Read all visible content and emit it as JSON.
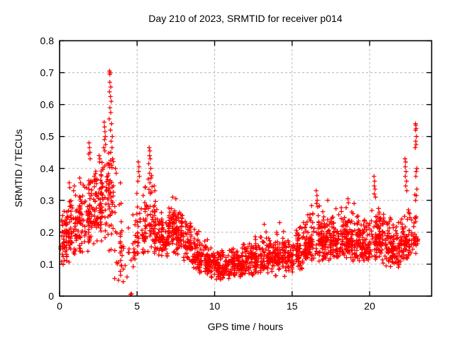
{
  "window": {
    "background": "#ffffff"
  },
  "chart_data": {
    "type": "scatter",
    "title": "Day 210 of 2023, SRMTID for receiver p014",
    "xlabel": "GPS time / hours",
    "ylabel": "SRMTID / TECUs",
    "xlim": [
      0,
      24
    ],
    "ylim": [
      0,
      0.8
    ],
    "x_ticks": [
      0,
      5,
      10,
      15,
      20
    ],
    "x_tick_labels": [
      "0",
      "5",
      "10",
      "15",
      "20"
    ],
    "y_ticks": [
      0,
      0.1,
      0.2,
      0.3,
      0.4,
      0.5,
      0.6,
      0.7,
      0.8
    ],
    "y_tick_labels": [
      "0",
      "0.1",
      "0.2",
      "0.3",
      "0.4",
      "0.5",
      "0.6",
      "0.7",
      "0.8"
    ],
    "grid": true,
    "legend": "none",
    "marker": "plus",
    "marker_color": "#ff0000",
    "grid_color": "#b5b5b5",
    "frame_color": "#000000",
    "seed": 20230729,
    "series_name": "SRMTID",
    "density_bins_format": [
      "x_start_hours",
      "x_end_hours",
      "n_points",
      "y_min",
      "y_max",
      "y_mode"
    ],
    "density_bins": [
      [
        0.0,
        0.5,
        50,
        0.09,
        0.28,
        0.18
      ],
      [
        0.5,
        1.0,
        50,
        0.1,
        0.33,
        0.2
      ],
      [
        1.0,
        1.5,
        52,
        0.12,
        0.36,
        0.22
      ],
      [
        1.5,
        2.0,
        52,
        0.13,
        0.42,
        0.24
      ],
      [
        2.0,
        2.5,
        52,
        0.15,
        0.42,
        0.26
      ],
      [
        2.5,
        3.0,
        55,
        0.16,
        0.47,
        0.29
      ],
      [
        3.0,
        3.5,
        48,
        0.1,
        0.52,
        0.3
      ],
      [
        3.5,
        4.0,
        26,
        0.05,
        0.36,
        0.17
      ],
      [
        4.0,
        4.5,
        12,
        0.04,
        0.22,
        0.12
      ],
      [
        4.5,
        5.0,
        16,
        0.08,
        0.27,
        0.15
      ],
      [
        5.0,
        5.5,
        38,
        0.12,
        0.35,
        0.2
      ],
      [
        5.5,
        6.0,
        50,
        0.12,
        0.42,
        0.24
      ],
      [
        6.0,
        6.5,
        52,
        0.12,
        0.32,
        0.19
      ],
      [
        6.5,
        7.0,
        55,
        0.12,
        0.28,
        0.18
      ],
      [
        7.0,
        7.5,
        58,
        0.13,
        0.3,
        0.2
      ],
      [
        7.5,
        8.0,
        58,
        0.12,
        0.3,
        0.2
      ],
      [
        8.0,
        8.5,
        55,
        0.1,
        0.27,
        0.16
      ],
      [
        8.5,
        9.0,
        52,
        0.08,
        0.22,
        0.13
      ],
      [
        9.0,
        9.5,
        52,
        0.06,
        0.18,
        0.11
      ],
      [
        9.5,
        10.0,
        52,
        0.05,
        0.16,
        0.1
      ],
      [
        10.0,
        10.5,
        52,
        0.05,
        0.15,
        0.09
      ],
      [
        10.5,
        11.0,
        52,
        0.04,
        0.15,
        0.09
      ],
      [
        11.0,
        11.5,
        52,
        0.05,
        0.16,
        0.1
      ],
      [
        11.5,
        12.0,
        52,
        0.05,
        0.17,
        0.1
      ],
      [
        12.0,
        12.5,
        52,
        0.06,
        0.18,
        0.11
      ],
      [
        12.5,
        13.0,
        52,
        0.06,
        0.2,
        0.11
      ],
      [
        13.0,
        13.5,
        52,
        0.07,
        0.22,
        0.12
      ],
      [
        13.5,
        14.0,
        52,
        0.06,
        0.2,
        0.12
      ],
      [
        14.0,
        14.5,
        52,
        0.07,
        0.22,
        0.12
      ],
      [
        14.5,
        15.0,
        52,
        0.06,
        0.2,
        0.11
      ],
      [
        15.0,
        15.5,
        52,
        0.07,
        0.24,
        0.13
      ],
      [
        15.5,
        16.0,
        52,
        0.08,
        0.24,
        0.14
      ],
      [
        16.0,
        16.5,
        54,
        0.1,
        0.3,
        0.17
      ],
      [
        16.5,
        17.0,
        54,
        0.1,
        0.3,
        0.18
      ],
      [
        17.0,
        17.5,
        54,
        0.1,
        0.28,
        0.17
      ],
      [
        17.5,
        18.0,
        54,
        0.1,
        0.3,
        0.18
      ],
      [
        18.0,
        18.5,
        54,
        0.1,
        0.28,
        0.17
      ],
      [
        18.5,
        19.0,
        54,
        0.1,
        0.3,
        0.18
      ],
      [
        19.0,
        19.5,
        54,
        0.1,
        0.28,
        0.17
      ],
      [
        19.5,
        20.0,
        54,
        0.1,
        0.26,
        0.16
      ],
      [
        20.0,
        20.5,
        54,
        0.1,
        0.3,
        0.17
      ],
      [
        20.5,
        21.0,
        54,
        0.1,
        0.28,
        0.17
      ],
      [
        21.0,
        21.5,
        56,
        0.08,
        0.25,
        0.15
      ],
      [
        21.5,
        22.0,
        56,
        0.08,
        0.28,
        0.16
      ],
      [
        22.0,
        22.5,
        54,
        0.1,
        0.3,
        0.17
      ],
      [
        22.5,
        23.1,
        50,
        0.12,
        0.32,
        0.19
      ]
    ],
    "notable_points": [
      [
        0.62,
        0.355
      ],
      [
        0.66,
        0.34
      ],
      [
        0.9,
        0.33
      ],
      [
        0.95,
        0.345
      ],
      [
        1.3,
        0.37
      ],
      [
        1.35,
        0.355
      ],
      [
        1.88,
        0.445
      ],
      [
        1.9,
        0.48
      ],
      [
        1.93,
        0.465
      ],
      [
        1.96,
        0.45
      ],
      [
        1.97,
        0.43
      ],
      [
        2.55,
        0.44
      ],
      [
        2.58,
        0.42
      ],
      [
        2.6,
        0.43
      ],
      [
        2.85,
        0.465
      ],
      [
        2.88,
        0.545
      ],
      [
        2.9,
        0.53
      ],
      [
        2.9,
        0.49
      ],
      [
        2.92,
        0.455
      ],
      [
        2.93,
        0.515
      ],
      [
        2.95,
        0.5
      ],
      [
        2.97,
        0.475
      ],
      [
        3.22,
        0.705
      ],
      [
        3.27,
        0.7
      ],
      [
        3.24,
        0.695
      ],
      [
        3.24,
        0.67
      ],
      [
        3.3,
        0.655
      ],
      [
        3.22,
        0.64
      ],
      [
        3.28,
        0.625
      ],
      [
        3.33,
        0.61
      ],
      [
        3.25,
        0.59
      ],
      [
        3.3,
        0.575
      ],
      [
        3.2,
        0.555
      ],
      [
        3.35,
        0.54
      ],
      [
        3.28,
        0.52
      ],
      [
        3.4,
        0.5
      ],
      [
        3.32,
        0.485
      ],
      [
        3.38,
        0.465
      ],
      [
        3.3,
        0.45
      ],
      [
        3.42,
        0.43
      ],
      [
        3.36,
        0.41
      ],
      [
        3.6,
        0.4
      ],
      [
        3.65,
        0.385
      ],
      [
        3.55,
        0.055
      ],
      [
        3.8,
        0.05
      ],
      [
        4.1,
        0.045
      ],
      [
        4.35,
        0.06
      ],
      [
        4.58,
        0.005
      ],
      [
        4.64,
        0.007
      ],
      [
        5.05,
        0.36
      ],
      [
        5.08,
        0.42
      ],
      [
        5.1,
        0.39
      ],
      [
        5.12,
        0.405
      ],
      [
        5.15,
        0.375
      ],
      [
        5.75,
        0.415
      ],
      [
        5.78,
        0.465
      ],
      [
        5.8,
        0.44
      ],
      [
        5.8,
        0.385
      ],
      [
        5.82,
        0.455
      ],
      [
        5.83,
        0.355
      ],
      [
        5.85,
        0.43
      ],
      [
        5.88,
        0.4
      ],
      [
        5.9,
        0.37
      ],
      [
        6.1,
        0.345
      ],
      [
        6.15,
        0.33
      ],
      [
        7.3,
        0.31
      ],
      [
        7.5,
        0.305
      ],
      [
        13.2,
        0.225
      ],
      [
        14.2,
        0.23
      ],
      [
        16.55,
        0.33
      ],
      [
        16.58,
        0.29
      ],
      [
        16.6,
        0.315
      ],
      [
        16.62,
        0.3
      ],
      [
        16.65,
        0.28
      ],
      [
        17.3,
        0.3
      ],
      [
        18.6,
        0.305
      ],
      [
        19.0,
        0.29
      ],
      [
        20.28,
        0.375
      ],
      [
        20.3,
        0.345
      ],
      [
        20.3,
        0.32
      ],
      [
        20.32,
        0.36
      ],
      [
        20.35,
        0.335
      ],
      [
        20.38,
        0.31
      ],
      [
        22.28,
        0.43
      ],
      [
        22.3,
        0.405
      ],
      [
        22.3,
        0.375
      ],
      [
        22.32,
        0.42
      ],
      [
        22.32,
        0.345
      ],
      [
        22.35,
        0.39
      ],
      [
        22.38,
        0.36
      ],
      [
        22.4,
        0.33
      ],
      [
        22.94,
        0.465
      ],
      [
        22.95,
        0.54
      ],
      [
        22.96,
        0.52
      ],
      [
        22.96,
        0.3
      ],
      [
        22.97,
        0.485
      ],
      [
        22.98,
        0.535
      ],
      [
        22.98,
        0.375
      ],
      [
        23.0,
        0.525
      ],
      [
        23.0,
        0.475
      ],
      [
        23.0,
        0.39
      ],
      [
        23.02,
        0.5
      ],
      [
        23.02,
        0.315
      ],
      [
        23.05,
        0.4
      ],
      [
        23.05,
        0.335
      ]
    ]
  }
}
